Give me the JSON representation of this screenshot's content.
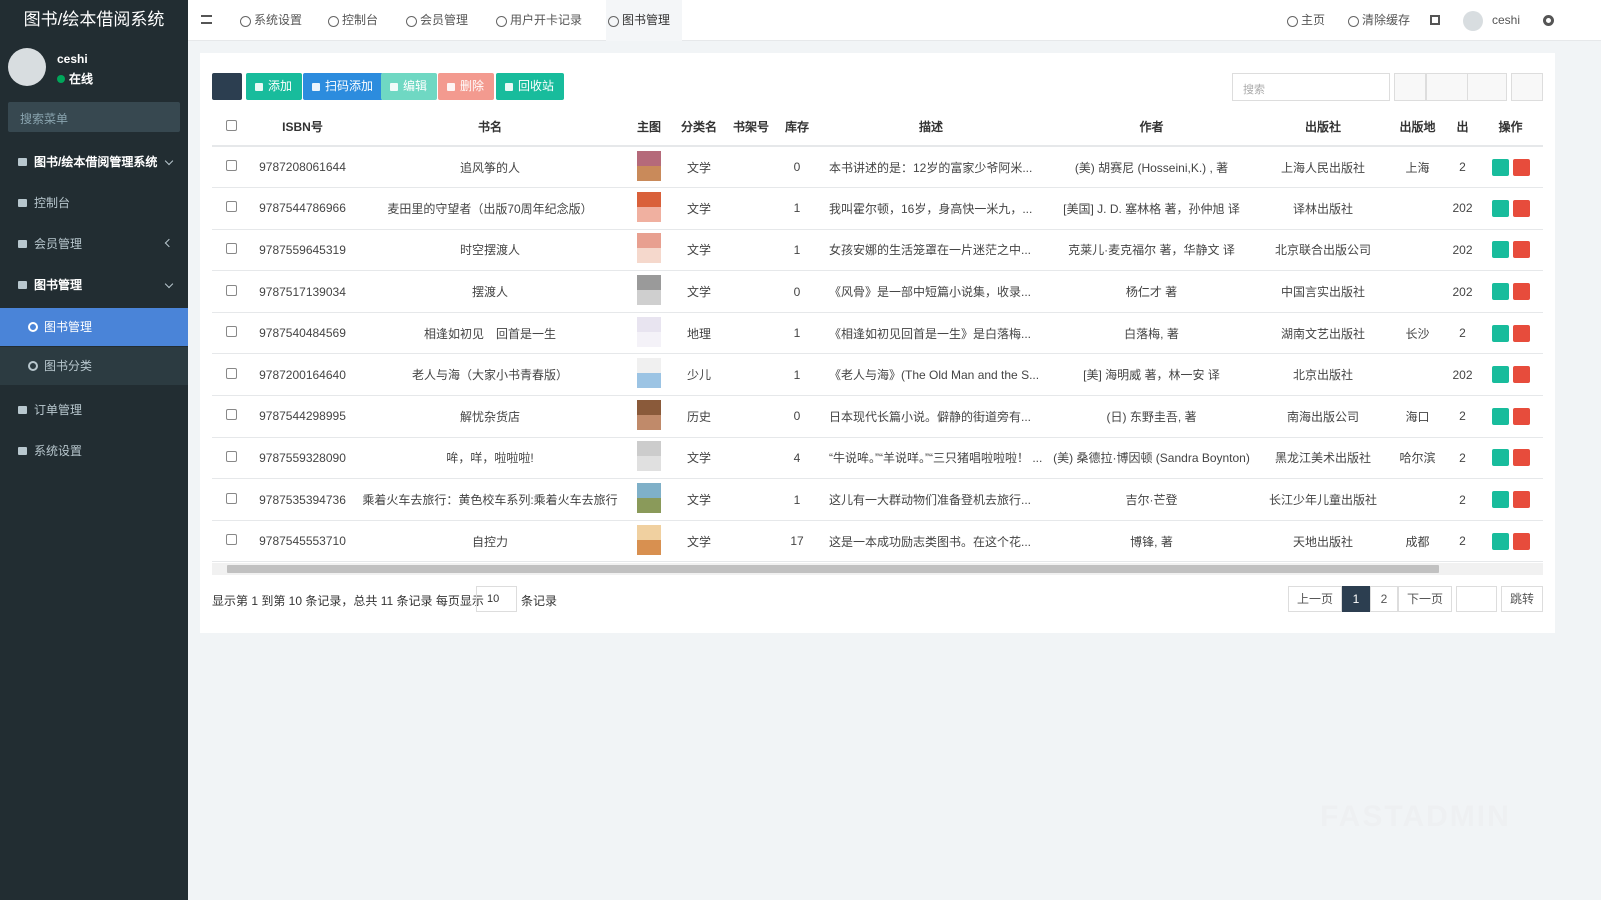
{
  "sidebar": {
    "logo": "图书/绘本借阅系统",
    "user": "ceshi",
    "status": "在线",
    "search_placeholder": "搜索菜单",
    "menu": [
      {
        "label": "图书/绘本借阅管理系统",
        "level": 0,
        "arrow": "down"
      },
      {
        "label": "控制台",
        "level": 1
      },
      {
        "label": "会员管理",
        "level": 1,
        "arrow": "left"
      },
      {
        "label": "图书管理",
        "level": 1,
        "arrow": "down",
        "open": true
      },
      {
        "label": "图书管理",
        "level": 2,
        "active": true
      },
      {
        "label": "图书分类",
        "level": 2
      },
      {
        "label": "订单管理",
        "level": 1
      },
      {
        "label": "系统设置",
        "level": 1
      }
    ]
  },
  "topbar": {
    "tabs": [
      "系统设置",
      "控制台",
      "会员管理",
      "用户开卡记录",
      "图书管理"
    ],
    "active_tab": 4,
    "links": [
      "主页",
      "清除缓存"
    ],
    "user": "ceshi"
  },
  "toolbar": {
    "buttons": [
      {
        "label": "添加",
        "color": "#18bc9c"
      },
      {
        "label": "扫码添加",
        "color": "#2c8cde"
      },
      {
        "label": "编辑",
        "color": "#6fd8c3"
      },
      {
        "label": "删除",
        "color": "#f39a8f"
      },
      {
        "label": "回收站",
        "color": "#18bc9c"
      }
    ],
    "search_placeholder": "搜索"
  },
  "table": {
    "columns": [
      "ISBN号",
      "书名",
      "主图",
      "分类名",
      "书架号",
      "库存",
      "描述",
      "作者",
      "出版社",
      "出版地",
      "出",
      "操作"
    ],
    "rows": [
      {
        "isbn": "9787208061644",
        "title": "追风筝的人",
        "category": "文学",
        "stock": "0",
        "desc": "本书讲述的是：12岁的富家少爷阿米...",
        "author": "(美) 胡赛尼 (Hosseini,K.) , 著",
        "publisher": "上海人民出版社",
        "place": "上海",
        "date": "2"
      },
      {
        "isbn": "9787544786966",
        "title": "麦田里的守望者（出版70周年纪念版）",
        "category": "文学",
        "stock": "1",
        "desc": "我叫霍尔顿，16岁，身高快一米九，...",
        "author": "[美国] J. D. 塞林格 著，孙仲旭 译",
        "publisher": "译林出版社",
        "place": null,
        "date": "202"
      },
      {
        "isbn": "9787559645319",
        "title": "时空摆渡人",
        "category": "文学",
        "stock": "1",
        "desc": "女孩安娜的生活笼罩在一片迷茫之中...",
        "author": "克莱儿·麦克福尔 著，华静文 译",
        "publisher": "北京联合出版公司",
        "place": null,
        "date": "202"
      },
      {
        "isbn": "9787517139034",
        "title": "摆渡人",
        "category": "文学",
        "stock": "0",
        "desc": "《风骨》是一部中短篇小说集，收录...",
        "author": "杨仁才 著",
        "publisher": "中国言实出版社",
        "place": null,
        "date": "202"
      },
      {
        "isbn": "9787540484569",
        "title": "相逢如初见　回首是一生",
        "category": "地理",
        "stock": "1",
        "desc": "《相逢如初见回首是一生》是白落梅...",
        "author": "白落梅, 著",
        "publisher": "湖南文艺出版社",
        "place": "长沙",
        "date": "2"
      },
      {
        "isbn": "9787200164640",
        "title": "老人与海（大家小书青春版）",
        "category": "少儿",
        "stock": "1",
        "desc": "《老人与海》(The Old Man and the S...",
        "author": "[美] 海明威 著，林一安 译",
        "publisher": "北京出版社",
        "place": null,
        "date": "202"
      },
      {
        "isbn": "9787544298995",
        "title": "解忧杂货店",
        "category": "历史",
        "stock": "0",
        "desc": "日本现代长篇小说。僻静的街道旁有...",
        "author": "(日) 东野圭吾, 著",
        "publisher": "南海出版公司",
        "place": "海口",
        "date": "2"
      },
      {
        "isbn": "9787559328090",
        "title": "哞，咩，啦啦啦!",
        "category": "文学",
        "stock": "4",
        "desc": "“牛说哞。”“羊说咩。”“三只猪唱啦啦啦！ ...",
        "author": "(美) 桑德拉·博因顿 (Sandra Boynton)",
        "publisher": "黑龙江美术出版社",
        "place": "哈尔滨",
        "date": "2"
      },
      {
        "isbn": "9787535394736",
        "title": "乘着火车去旅行：黄色校车系列:乘着火车去旅行",
        "category": "文学",
        "stock": "1",
        "desc": "这儿有一大群动物们准备登机去旅行...",
        "author": "吉尔·芒登",
        "publisher": "长江少年儿童出版社",
        "place": null,
        "date": "2"
      },
      {
        "isbn": "9787545553710",
        "title": "自控力",
        "category": "文学",
        "stock": "17",
        "desc": "这是一本成功励志类图书。在这个花...",
        "author": "博锋, 著",
        "publisher": "天地出版社",
        "place": "成都",
        "date": "2"
      }
    ]
  },
  "pagination": {
    "summary": "显示第 1 到第 10 条记录，总共 11 条记录 每页显示",
    "page_size": "10",
    "suffix": "条记录",
    "prev": "上一页",
    "pages": [
      "1",
      "2"
    ],
    "current": 0,
    "next": "下一页",
    "jump": "跳转"
  },
  "watermark": "FASTADMIN"
}
